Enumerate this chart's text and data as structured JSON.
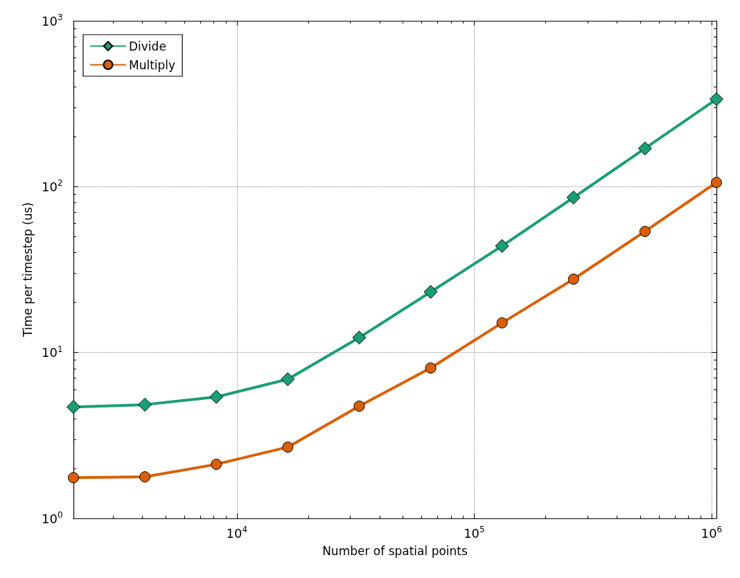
{
  "chart_data": {
    "type": "line",
    "xlabel": "Number of spatial points",
    "ylabel": "Time per timestep (us)",
    "x": [
      2048,
      4096,
      8192,
      16384,
      32768,
      65536,
      131072,
      262144,
      524288,
      1048576
    ],
    "series": [
      {
        "name": "Divide",
        "color": "#1b9e77",
        "marker": "diamond",
        "values": [
          4.7,
          4.85,
          5.4,
          6.9,
          12.3,
          23.2,
          43.9,
          86,
          170,
          337
        ]
      },
      {
        "name": "Multiply",
        "color": "#d95f02",
        "marker": "circle",
        "values": [
          1.76,
          1.78,
          2.12,
          2.69,
          4.75,
          8.07,
          15.1,
          27.7,
          53.7,
          106
        ]
      }
    ],
    "log": "xy",
    "xlim": [
      2048,
      1048576
    ],
    "ylim": [
      1,
      1000
    ],
    "xticks": [
      {
        "value": 10000,
        "label": "10$^{4}$"
      },
      {
        "value": 100000,
        "label": "10$^{5}$"
      },
      {
        "value": 1000000,
        "label": "10$^{6}$"
      }
    ],
    "yticks": [
      {
        "value": 1,
        "label": "10$^{0}$"
      },
      {
        "value": 10,
        "label": "10$^{1}$"
      },
      {
        "value": 100,
        "label": "10$^{2}$"
      },
      {
        "value": 1000,
        "label": "10$^{3}$"
      }
    ],
    "grid": true,
    "legend": "top left",
    "line_style": "solid"
  }
}
